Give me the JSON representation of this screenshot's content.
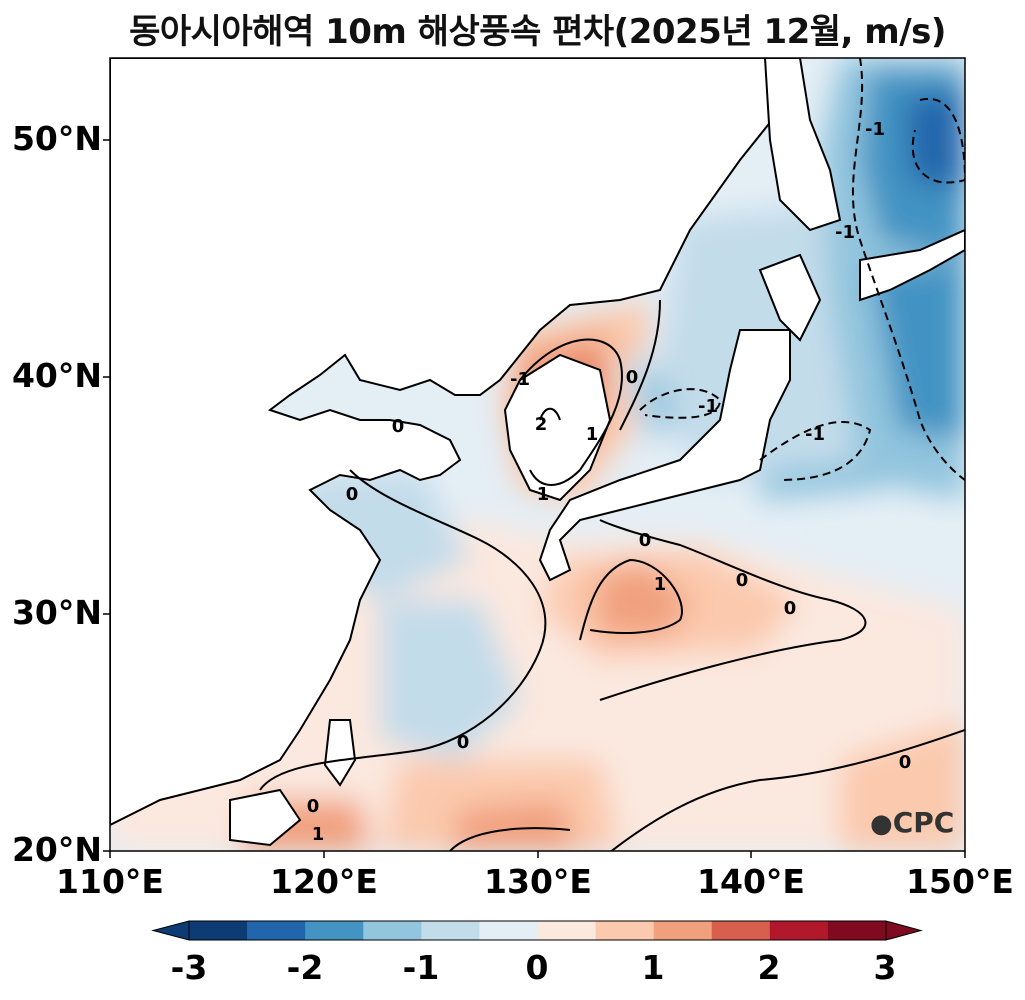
{
  "title": "동아시아해역 10m 해상풍속 편차(2025년 12월, m/s)",
  "map": {
    "lon_range": [
      110,
      150
    ],
    "lat_range": [
      20,
      53.5
    ],
    "lat_ticks": [
      "50°N",
      "40°N",
      "30°N",
      "20°N"
    ],
    "lon_ticks": [
      "110°E",
      "120°E",
      "130°E",
      "140°E",
      "150°E"
    ],
    "contour_labels": [
      "0",
      "0",
      "0",
      "0",
      "0",
      "0",
      "0",
      "0",
      "0",
      "1",
      "1",
      "1",
      "1",
      "2",
      "-1",
      "-1",
      "-1",
      "-1",
      "-1"
    ]
  },
  "colorbar": {
    "ticks": [
      "-3",
      "-2",
      "-1",
      "0",
      "1",
      "2",
      "3"
    ],
    "colors": [
      "#0d3b74",
      "#2166ac",
      "#4393c3",
      "#92c5de",
      "#c3dcea",
      "#e4eef5",
      "#fbe8df",
      "#fbc9ad",
      "#f1a07e",
      "#d6604d",
      "#b2182b",
      "#800a1f"
    ]
  },
  "logo": "CPC"
}
